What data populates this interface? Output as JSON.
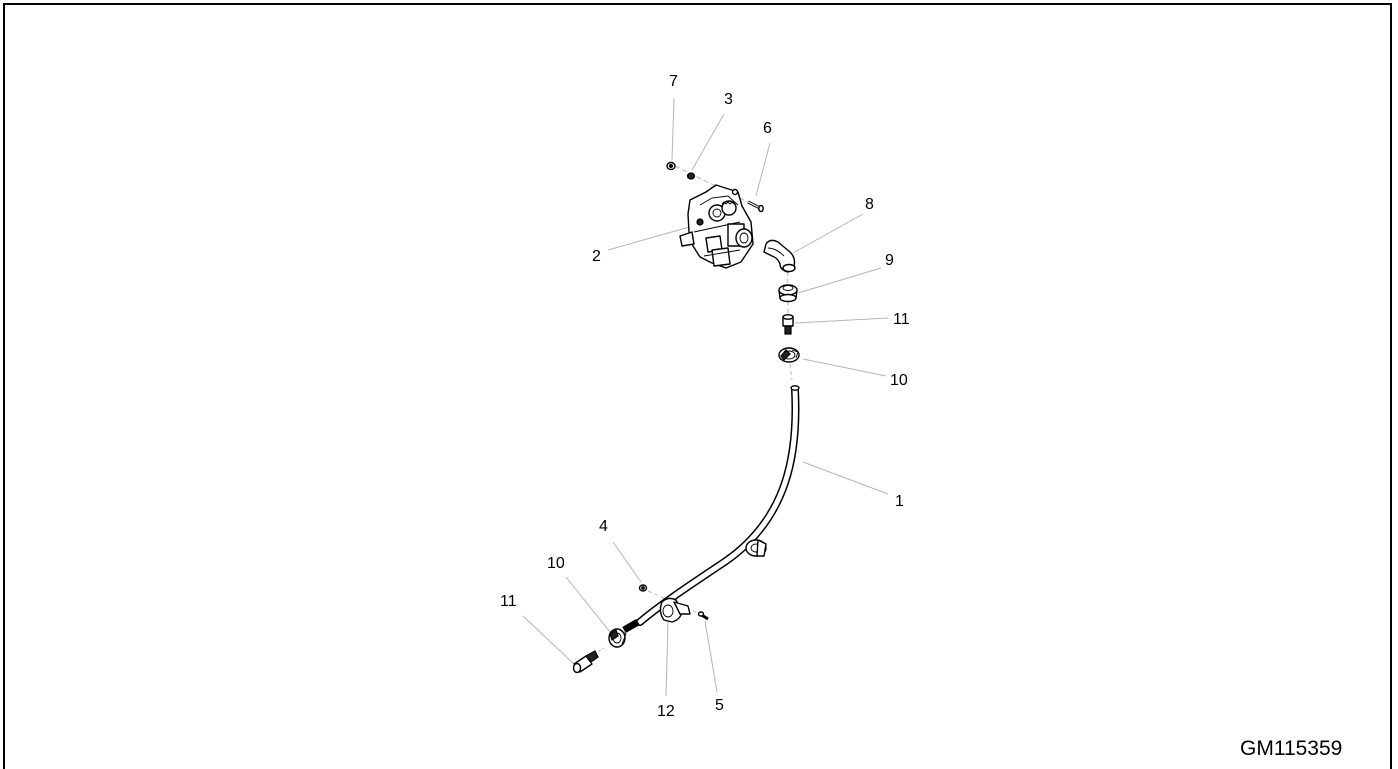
{
  "drawing_id": "GM115359",
  "callouts": {
    "c7": "7",
    "c3": "3",
    "c6": "6",
    "c8": "8",
    "c2": "2",
    "c9": "9",
    "c11a": "11",
    "c10a": "10",
    "c1": "1",
    "c4": "4",
    "c10b": "10",
    "c11b": "11",
    "c12": "12",
    "c5": "5"
  }
}
